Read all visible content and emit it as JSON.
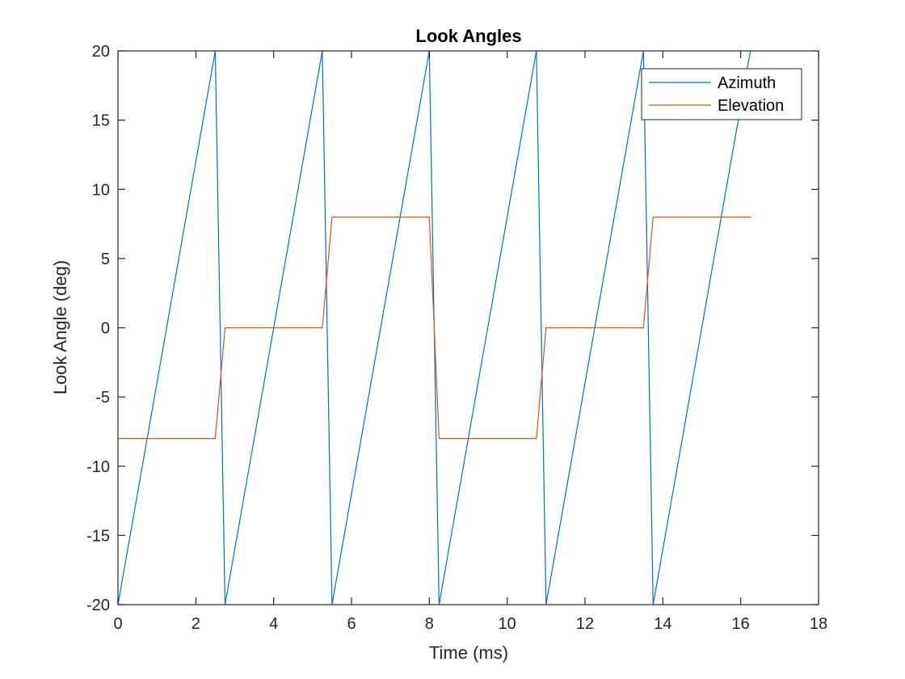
{
  "chart_data": {
    "type": "line",
    "title": "Look Angles",
    "xlabel": "Time (ms)",
    "ylabel": "Look Angle (deg)",
    "xlim": [
      0,
      18
    ],
    "ylim": [
      -20,
      20
    ],
    "xticks": [
      0,
      2,
      4,
      6,
      8,
      10,
      12,
      14,
      16,
      18
    ],
    "yticks": [
      -20,
      -15,
      -10,
      -5,
      0,
      5,
      10,
      15,
      20
    ],
    "grid": false,
    "legend_position": "top-right",
    "series": [
      {
        "name": "Azimuth",
        "color": "#0072BD",
        "x": [
          0,
          2.5,
          2.75,
          5.25,
          5.5,
          8.0,
          8.25,
          10.75,
          11.0,
          13.5,
          13.75,
          16.25
        ],
        "y": [
          -20,
          20,
          -20,
          20,
          -20,
          20,
          -20,
          20,
          -20,
          20,
          -20,
          20
        ]
      },
      {
        "name": "Elevation",
        "color": "#D95319",
        "x": [
          0,
          2.5,
          2.75,
          5.25,
          5.5,
          8.0,
          8.25,
          10.75,
          11.0,
          13.5,
          13.75,
          16.27
        ],
        "y": [
          -8,
          -8,
          0,
          0,
          8,
          8,
          -8,
          -8,
          0,
          0,
          8,
          8
        ]
      }
    ]
  }
}
